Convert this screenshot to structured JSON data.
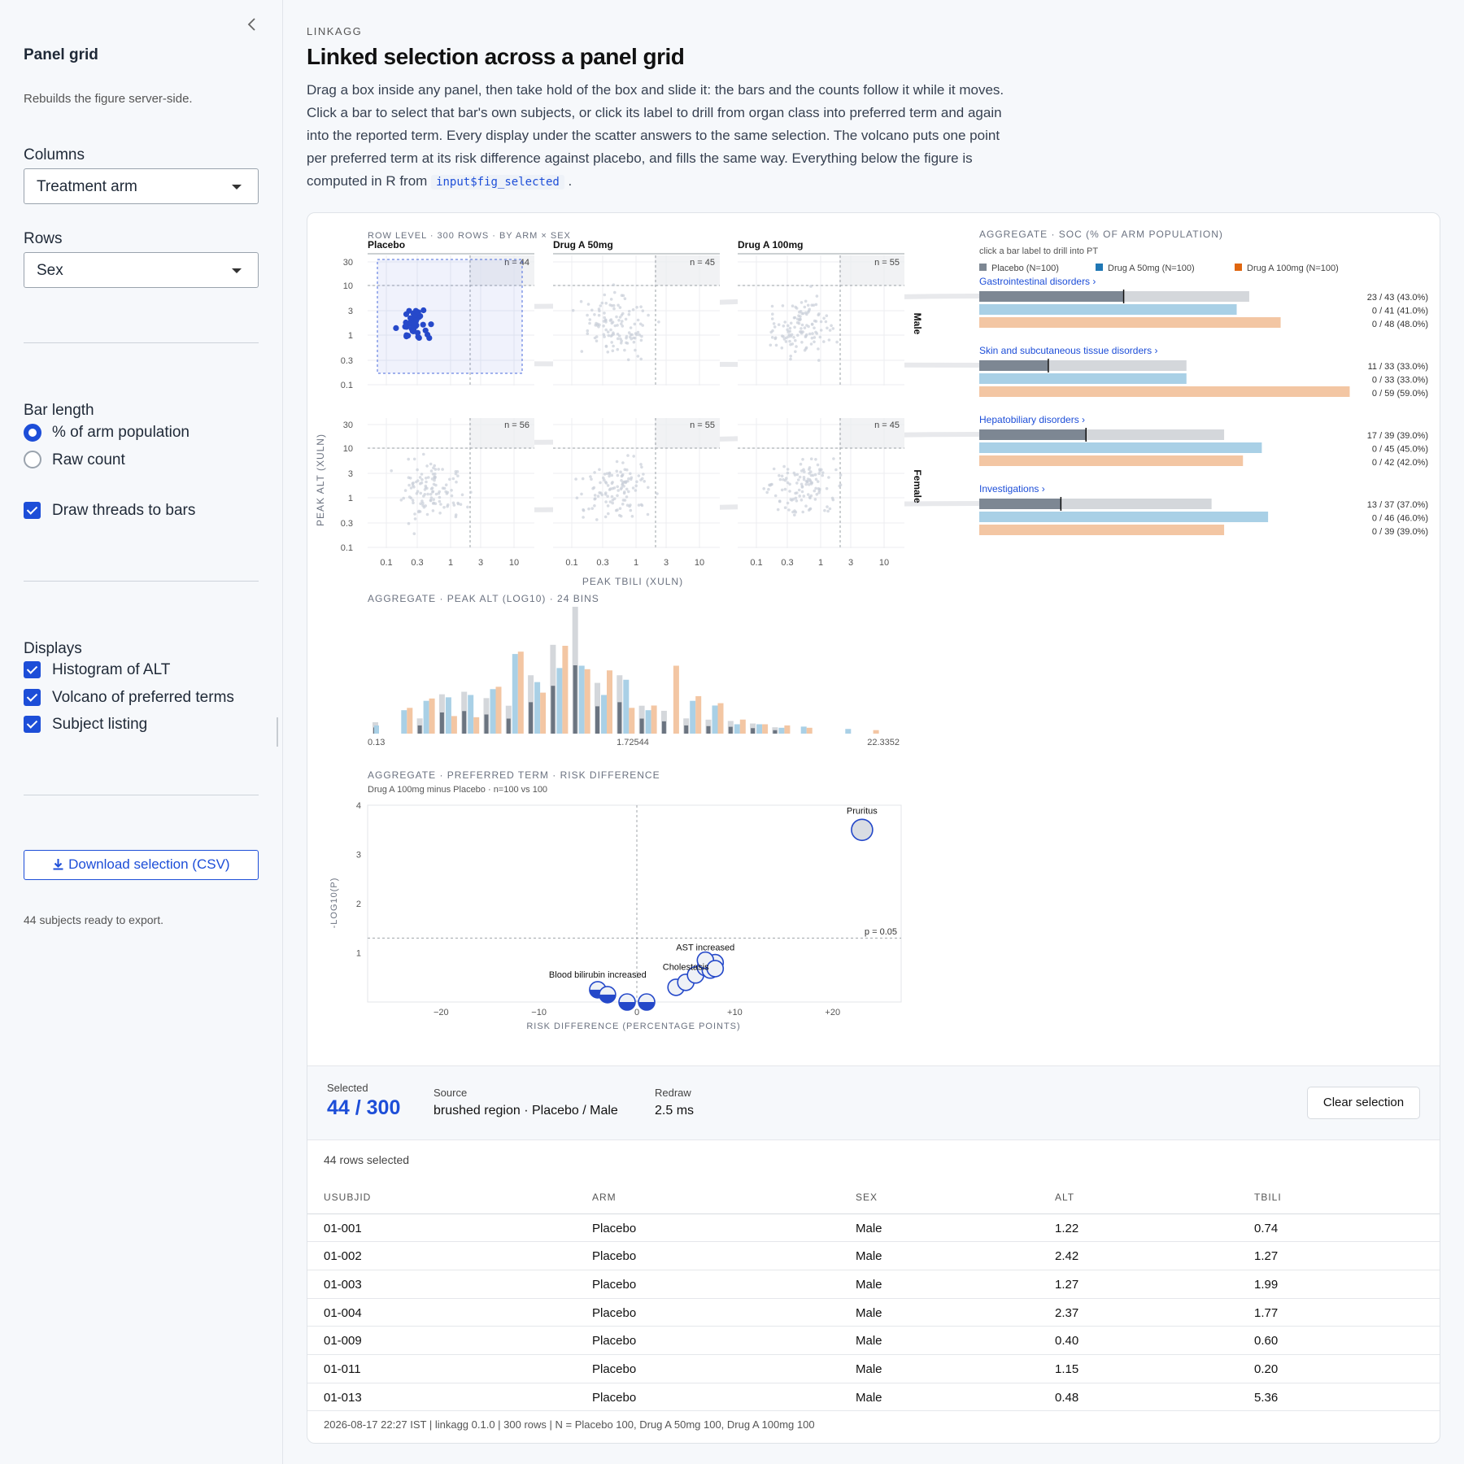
{
  "sidebar": {
    "collapse_icon": "chevron-left-icon",
    "title": "Panel grid",
    "subtitle": "Rebuilds the figure server-side.",
    "columns_label": "Columns",
    "columns_value": "Treatment arm",
    "rows_label": "Rows",
    "rows_value": "Sex",
    "bar_length_label": "Bar length",
    "bar_length_options": [
      "% of arm population",
      "Raw count"
    ],
    "bar_length_selected": "% of arm population",
    "threads_label": "Draw threads to bars",
    "threads_checked": true,
    "displays_label": "Displays",
    "displays": [
      {
        "label": "Histogram of ALT",
        "checked": true
      },
      {
        "label": "Volcano of preferred terms",
        "checked": true
      },
      {
        "label": "Subject listing",
        "checked": true
      }
    ],
    "download_label": "Download selection (CSV)",
    "download_icon": "download-icon",
    "export_note": "44 subjects ready to export."
  },
  "header": {
    "eyebrow": "LINKAGG",
    "title": "Linked selection across a panel grid",
    "description": "Drag a box inside any panel, then take hold of the box and slide it: the bars and the counts follow it while it moves. Click a bar to select that bar's own subjects, or click its label to drill from organ class into preferred term and again into the reported term. Every display under the scatter answers to the same selection. The volcano puts one point per preferred term at its risk difference against placebo, and fills the same way. Everything below the figure is computed in R from",
    "code": "input$fig_selected",
    "description_end": "."
  },
  "scatter": {
    "caption": "ROW LEVEL · 300 ROWS · BY ARM × SEX",
    "columns": [
      "Placebo",
      "Drug A 50mg",
      "Drug A 100mg"
    ],
    "rows": [
      "Male",
      "Female"
    ],
    "counts": [
      [
        "n = 44",
        "n = 45",
        "n = 55"
      ],
      [
        "n = 56",
        "n = 55",
        "n = 45"
      ]
    ],
    "y_ticks": [
      "30",
      "10",
      "3",
      "1",
      "0.3",
      "0.1"
    ],
    "x_ticks": [
      "0.1",
      "0.3",
      "1",
      "3",
      "10"
    ],
    "y_label": "PEAK ALT (XULN)",
    "x_label": "PEAK TBILI (XULN)"
  },
  "soc": {
    "caption": "AGGREGATE · SOC (% OF ARM POPULATION)",
    "hint": "click a bar label to drill into PT",
    "legend": [
      "Placebo (N=100)",
      "Drug A 50mg (N=100)",
      "Drug A 100mg (N=100)"
    ],
    "colors": {
      "placebo": "#7d8793",
      "placebo_bg": "#d4d7db",
      "drug50": "#a9d0e6",
      "drug100": "#f3c6a3",
      "sw50": "#1f77b4",
      "sw100": "#e0660f"
    },
    "groups": [
      {
        "label": "Gastrointestinal disorders ›",
        "lines": [
          "23 / 43 (43.0%)",
          "0 / 41 (41.0%)",
          "0 / 48 (48.0%)"
        ],
        "placebo": 43,
        "selected": 23,
        "drug50": 41,
        "drug100": 48
      },
      {
        "label": "Skin and subcutaneous tissue disorders ›",
        "lines": [
          "11 / 33 (33.0%)",
          "0 / 33 (33.0%)",
          "0 / 59 (59.0%)"
        ],
        "placebo": 33,
        "selected": 11,
        "drug50": 33,
        "drug100": 59
      },
      {
        "label": "Hepatobiliary disorders ›",
        "lines": [
          "17 / 39 (39.0%)",
          "0 / 45 (45.0%)",
          "0 / 42 (42.0%)"
        ],
        "placebo": 39,
        "selected": 17,
        "drug50": 45,
        "drug100": 42
      },
      {
        "label": "Investigations ›",
        "lines": [
          "13 / 37 (37.0%)",
          "0 / 46 (46.0%)",
          "0 / 39 (39.0%)"
        ],
        "placebo": 37,
        "selected": 13,
        "drug50": 46,
        "drug100": 39
      }
    ]
  },
  "histogram": {
    "caption": "AGGREGATE · PEAK ALT (LOG10) · 24 BINS",
    "x_ticks": [
      "0.13",
      "1.72544",
      "22.3352"
    ]
  },
  "volcano": {
    "caption": "AGGREGATE · PREFERRED TERM · RISK DIFFERENCE",
    "subtitle": "Drug A 100mg minus Placebo · n=100 vs 100",
    "y_label": "-LOG10(P)",
    "x_label": "RISK DIFFERENCE (PERCENTAGE POINTS)",
    "x_ticks": [
      "−20",
      "−10",
      "0",
      "+10",
      "+20"
    ],
    "y_ticks": [
      "4",
      "3",
      "2",
      "1"
    ],
    "threshold_label": "p = 0.05",
    "labels": [
      "Pruritus",
      "AST increased",
      "Cholestasis",
      "Blood bilirubin increased"
    ]
  },
  "summary": {
    "selected_label": "Selected",
    "selected_value": "44 / 300",
    "source_label": "Source",
    "source_value": "brushed region · Placebo / Male",
    "redraw_label": "Redraw",
    "redraw_value": "2.5 ms",
    "clear_label": "Clear selection"
  },
  "listing": {
    "count": "44 rows selected",
    "headers": [
      "USUBJID",
      "ARM",
      "SEX",
      "ALT",
      "TBILI"
    ],
    "rows": [
      [
        "01-001",
        "Placebo",
        "Male",
        "1.22",
        "0.74"
      ],
      [
        "01-002",
        "Placebo",
        "Male",
        "2.42",
        "1.27"
      ],
      [
        "01-003",
        "Placebo",
        "Male",
        "1.27",
        "1.99"
      ],
      [
        "01-004",
        "Placebo",
        "Male",
        "2.37",
        "1.77"
      ],
      [
        "01-009",
        "Placebo",
        "Male",
        "0.40",
        "0.60"
      ],
      [
        "01-011",
        "Placebo",
        "Male",
        "1.15",
        "0.20"
      ],
      [
        "01-013",
        "Placebo",
        "Male",
        "0.48",
        "5.36"
      ]
    ],
    "footer": "2026-08-17 22:27 IST | linkagg 0.1.0 | 300 rows | N = Placebo 100, Drug A 50mg 100, Drug A 100mg 100"
  }
}
